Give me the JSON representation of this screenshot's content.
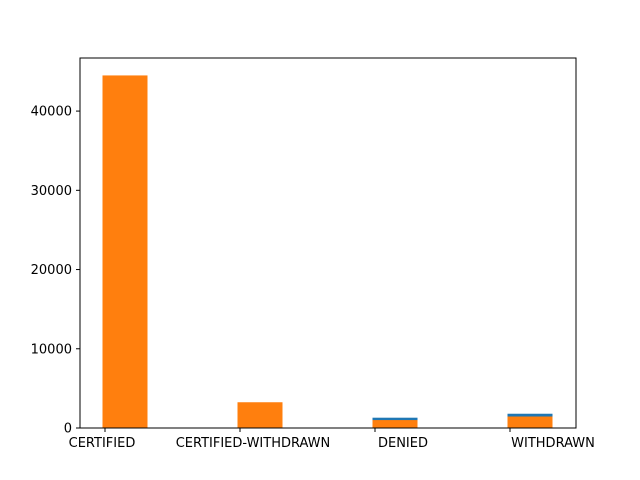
{
  "chart_data": {
    "type": "bar",
    "categories": [
      "CERTIFIED",
      "CERTIFIED-WITHDRAWN",
      "DENIED",
      "WITHDRAWN"
    ],
    "series": [
      {
        "color": "#1f77b4",
        "values": [
          44400,
          3200,
          1300,
          1800
        ]
      },
      {
        "color": "#ff7f0e",
        "values": [
          44500,
          3250,
          1000,
          1450
        ]
      }
    ],
    "yticks": [
      0,
      10000,
      20000,
      30000,
      40000
    ],
    "ylim": [
      0,
      46700
    ],
    "grid": false,
    "legend": "none",
    "title": "",
    "xlabel": "",
    "ylabel": ""
  }
}
